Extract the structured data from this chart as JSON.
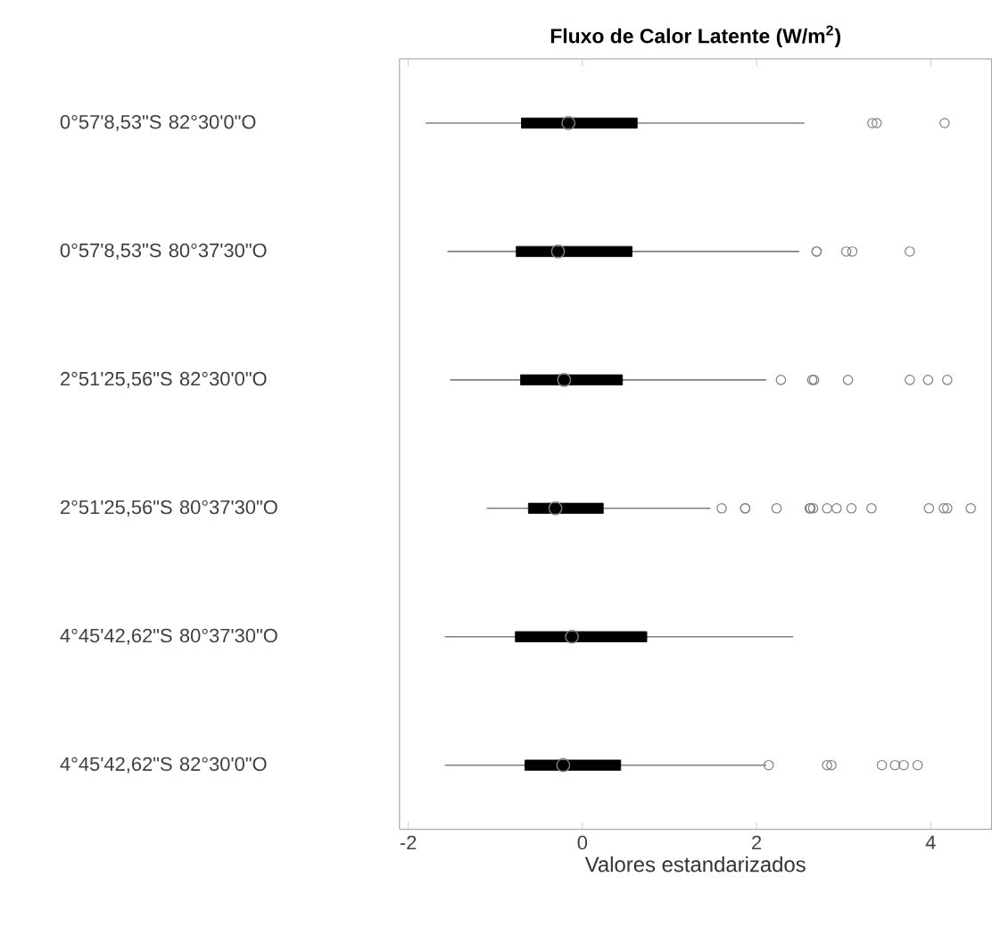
{
  "chart_data": {
    "type": "box",
    "orientation": "horizontal",
    "title": "**Fluxo de Calor Latente (W/m$^{2}$)**",
    "xlabel": "Valores estandarizados",
    "categories": [
      "0°57'8,53\"S  82°30'0\"O",
      "0°57'8,53\"S  80°37'30\"O",
      "2°51'25,56\"S  82°30'0\"O",
      "2°51'25,56\"S  80°37'30\"O",
      "4°45'42,62\"S  80°37'30\"O",
      "4°45'42,62\"S  82°30'0\"O"
    ],
    "color": "#000000",
    "boxes": [
      {
        "low": -1.8,
        "q1": -0.7,
        "median": -0.16,
        "q3": 0.63,
        "high": 2.55,
        "outliers": [
          3.33,
          3.38,
          4.16
        ]
      },
      {
        "low": -1.55,
        "q1": -0.76,
        "median": -0.28,
        "q3": 0.57,
        "high": 2.49,
        "outliers": [
          2.69,
          2.69,
          3.03,
          3.1,
          3.76
        ]
      },
      {
        "low": -1.52,
        "q1": -0.71,
        "median": -0.21,
        "q3": 0.46,
        "high": 2.11,
        "outliers": [
          2.28,
          2.64,
          2.66,
          3.05,
          3.76,
          3.97,
          4.19
        ]
      },
      {
        "low": -1.1,
        "q1": -0.62,
        "median": -0.31,
        "q3": 0.24,
        "high": 1.47,
        "outliers": [
          1.6,
          1.87,
          1.87,
          2.23,
          2.61,
          2.62,
          2.65,
          2.81,
          2.92,
          3.09,
          3.32,
          3.98,
          4.15,
          4.19,
          4.46
        ]
      },
      {
        "low": -1.58,
        "q1": -0.77,
        "median": -0.12,
        "q3": 0.74,
        "high": 2.42
      },
      {
        "low": -1.58,
        "q1": -0.66,
        "median": -0.22,
        "q3": 0.44,
        "high": 2.11,
        "outliers": [
          2.14,
          2.81,
          2.86,
          3.44,
          3.59,
          3.69,
          3.85
        ]
      }
    ],
    "xlim": [
      -2.1,
      4.7
    ],
    "xticks": [
      -2,
      0,
      2,
      4
    ]
  }
}
